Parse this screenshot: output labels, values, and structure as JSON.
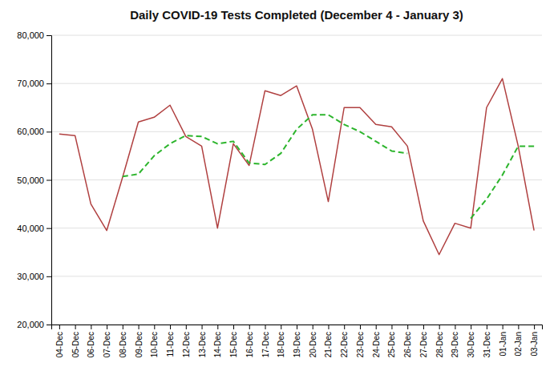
{
  "chart_data": {
    "type": "line",
    "title": "Daily COVID-19 Tests Completed (December 4 - January 3)",
    "categories": [
      "04-Dec",
      "05-Dec",
      "06-Dec",
      "07-Dec",
      "08-Dec",
      "09-Dec",
      "10-Dec",
      "11-Dec",
      "12-Dec",
      "13-Dec",
      "14-Dec",
      "15-Dec",
      "16-Dec",
      "17-Dec",
      "18-Dec",
      "19-Dec",
      "20-Dec",
      "21-Dec",
      "22-Dec",
      "23-Dec",
      "24-Dec",
      "25-Dec",
      "26-Dec",
      "27-Dec",
      "28-Dec",
      "29-Dec",
      "30-Dec",
      "31-Dec",
      "01-Jan",
      "02-Jan",
      "03-Jan"
    ],
    "series": [
      {
        "color": "#b04040",
        "line_style": "solid",
        "values": [
          59500,
          59200,
          45000,
          39500,
          50500,
          62000,
          63000,
          65500,
          59000,
          57000,
          40000,
          57500,
          53000,
          68500,
          67500,
          69500,
          60500,
          45500,
          65000,
          65000,
          61500,
          61000,
          57000,
          41500,
          34500,
          41000,
          40000,
          65000,
          71000,
          57000,
          39500
        ]
      },
      {
        "color": "#2db52d",
        "line_style": "dashed",
        "values": [
          null,
          null,
          null,
          null,
          50700,
          51200,
          55000,
          57500,
          59200,
          59000,
          57500,
          58000,
          53500,
          53200,
          55500,
          60500,
          63500,
          63500,
          61500,
          60000,
          58000,
          56000,
          55500,
          null,
          null,
          null,
          42000,
          46000,
          51000,
          57000,
          57000
        ]
      }
    ],
    "ylim": [
      20000,
      80000
    ],
    "yticks": [
      {
        "value": 20000,
        "label": "20,000"
      },
      {
        "value": 30000,
        "label": "30,000"
      },
      {
        "value": 40000,
        "label": "40,000"
      },
      {
        "value": 50000,
        "label": "50,000"
      },
      {
        "value": 60000,
        "label": "60,000"
      },
      {
        "value": 70000,
        "label": "70,000"
      },
      {
        "value": 80000,
        "label": "80,000"
      }
    ],
    "grid": true
  }
}
